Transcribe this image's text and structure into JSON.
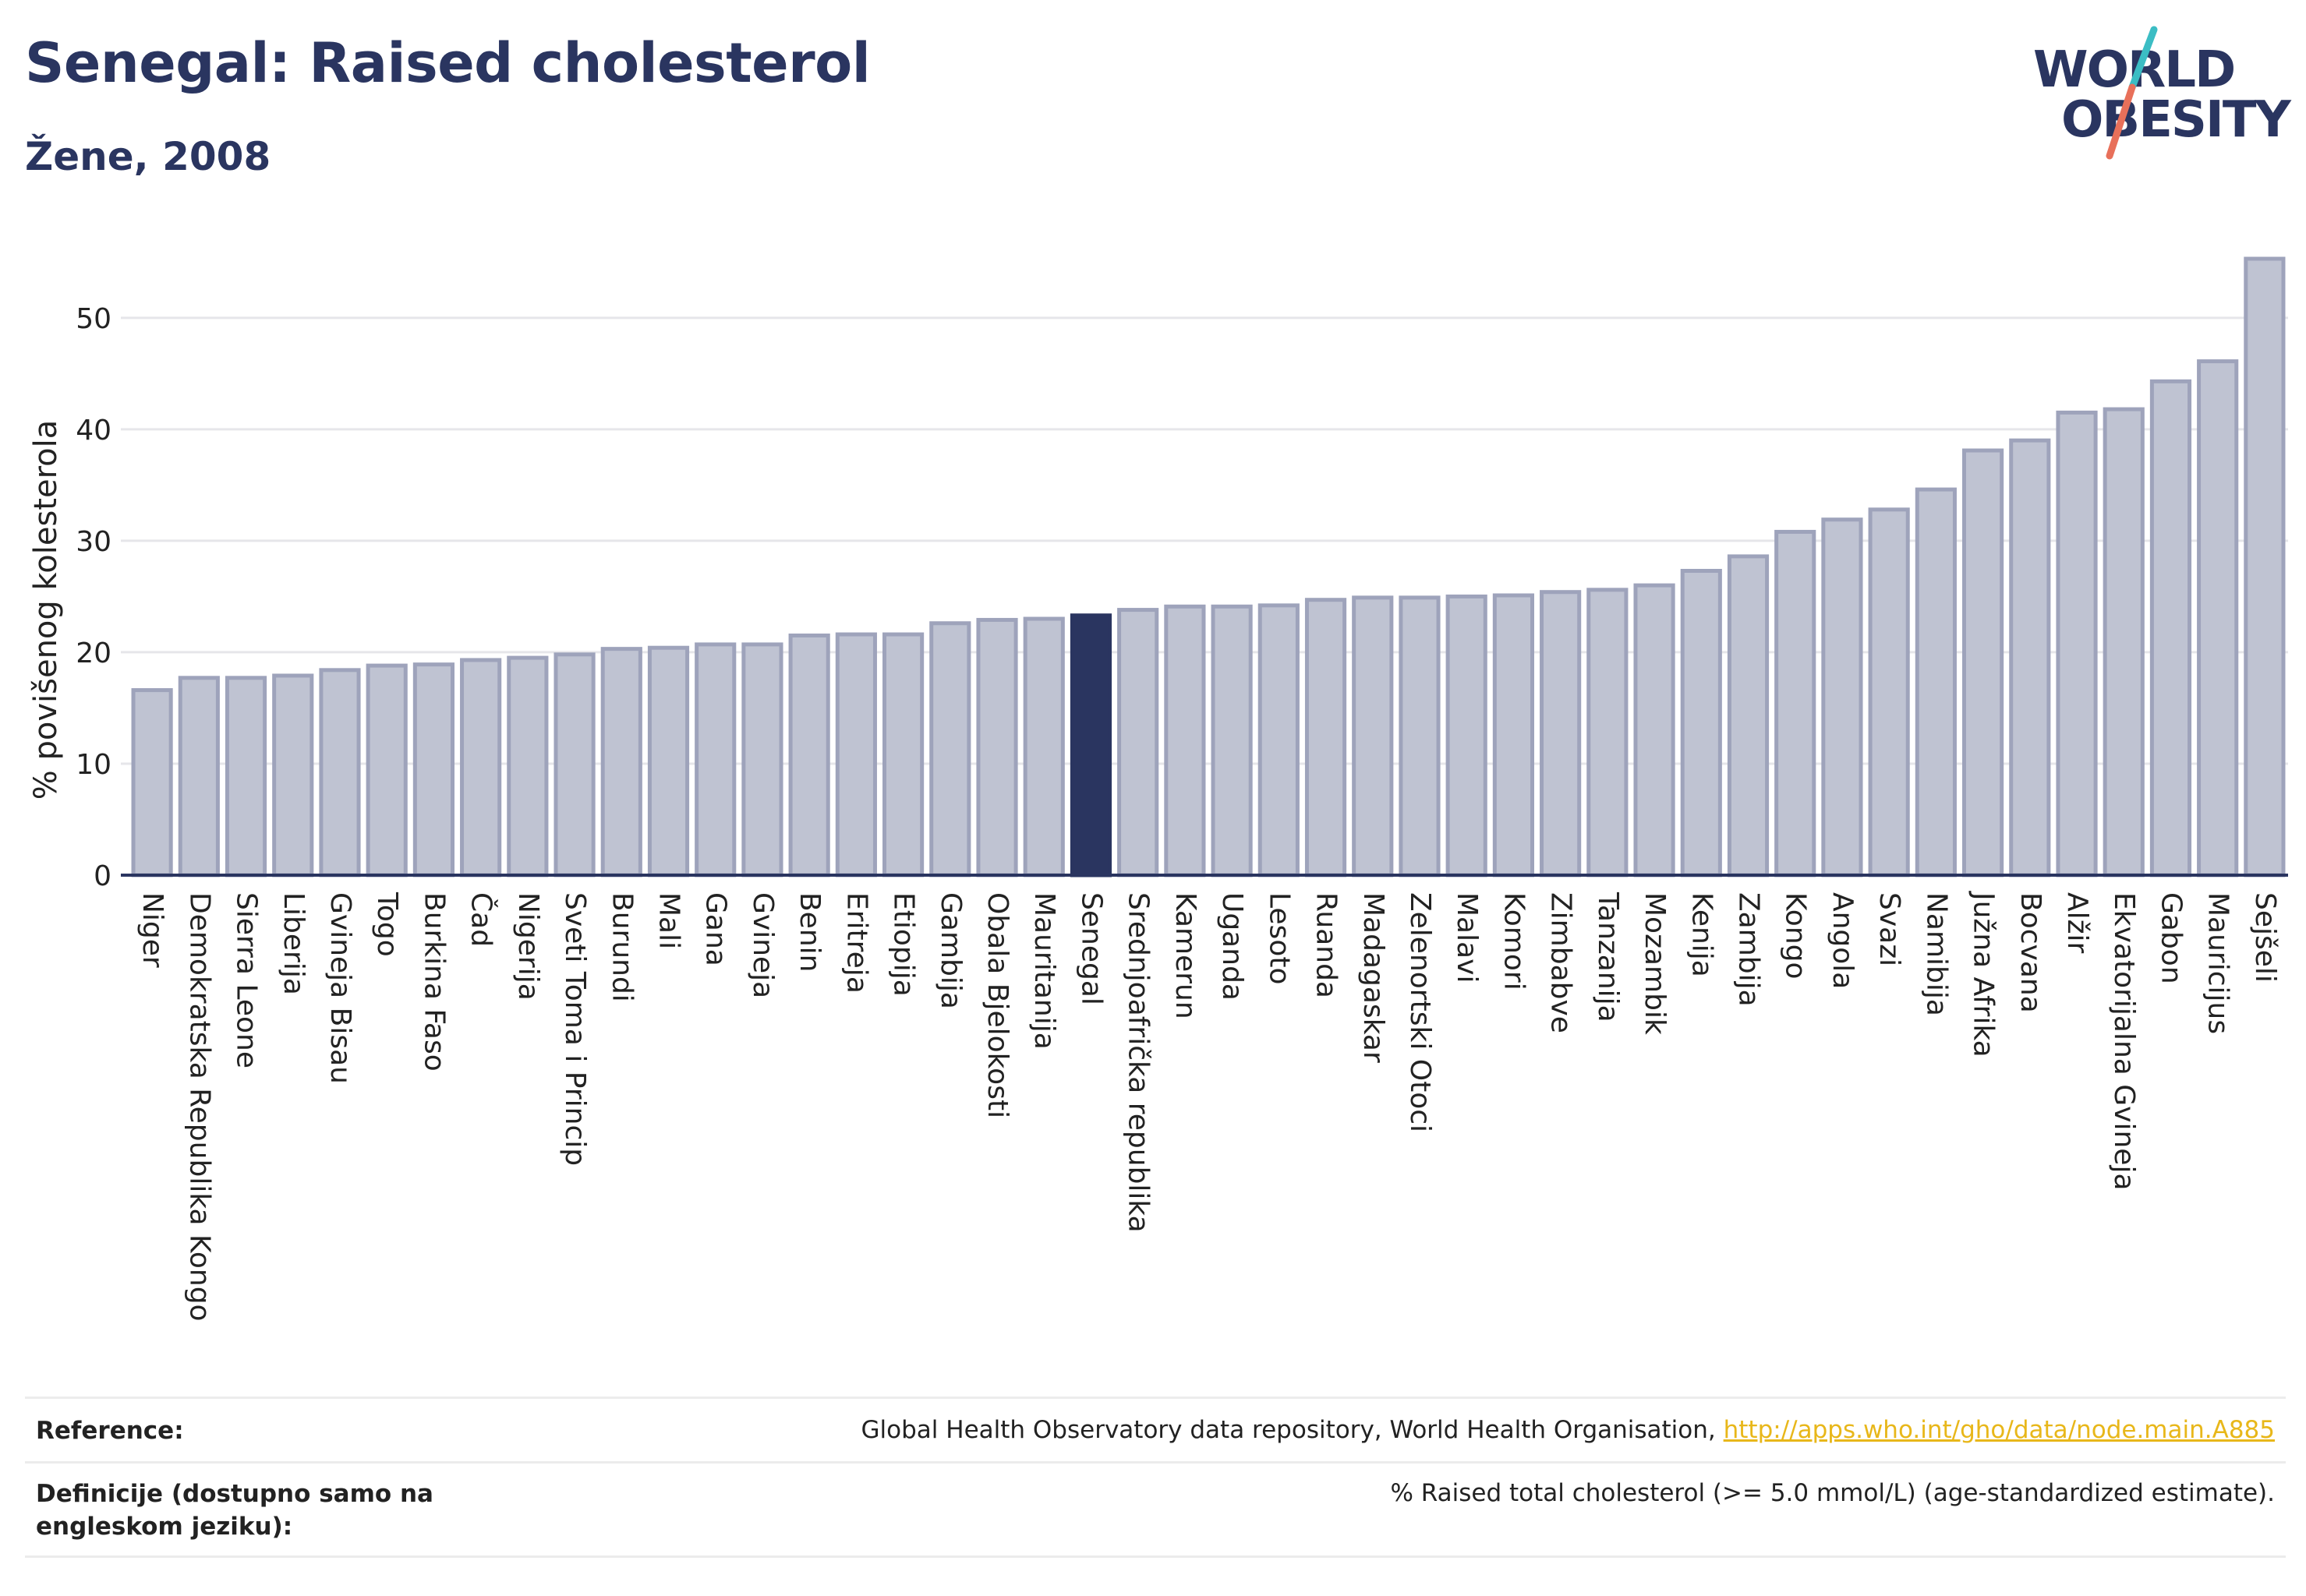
{
  "header": {
    "title": "Senegal: Raised cholesterol",
    "subtitle": "Žene, 2008"
  },
  "logo": {
    "line1": "WORLD",
    "line2": "OBESITY",
    "colors": {
      "text": "#2a3560",
      "slash_top": "#3bbdc4",
      "slash_bottom": "#e8705a"
    }
  },
  "chart_data": {
    "type": "bar",
    "title": "",
    "xlabel": "",
    "ylabel": "% povišenog kolesterola",
    "ylim": [
      0,
      56
    ],
    "yticks": [
      0,
      10,
      20,
      30,
      40,
      50
    ],
    "grid": true,
    "highlight": "Senegal",
    "colors": {
      "bar": "#bfc3d2",
      "bar_border": "#9ea3bb",
      "highlight": "#2a3560",
      "grid": "#e6e6ea",
      "axis": "#2a3560"
    },
    "categories": [
      "Niger",
      "Demokratska Republika Kongo",
      "Sierra Leone",
      "Liberija",
      "Gvineja Bisau",
      "Togo",
      "Burkina Faso",
      "Čad",
      "Nigerija",
      "Sveti Toma i Princip",
      "Burundi",
      "Mali",
      "Gana",
      "Gvineja",
      "Benin",
      "Eritreja",
      "Etiopija",
      "Gambija",
      "Obala Bjelokosti",
      "Mauritanija",
      "Senegal",
      "Srednjoafrička republika",
      "Kamerun",
      "Uganda",
      "Lesoto",
      "Ruanda",
      "Madagaskar",
      "Zelenortski Otoci",
      "Malavi",
      "Komori",
      "Zimbabve",
      "Tanzanija",
      "Mozambik",
      "Kenija",
      "Zambija",
      "Kongo",
      "Angola",
      "Svazi",
      "Namibija",
      "Južna Afrika",
      "Bocvana",
      "Alžir",
      "Ekvatorijalna Gvineja",
      "Gabon",
      "Mauricijus",
      "Sejšeli"
    ],
    "values": [
      16.6,
      17.7,
      17.7,
      17.9,
      18.4,
      18.8,
      18.9,
      19.3,
      19.5,
      19.8,
      20.3,
      20.4,
      20.7,
      20.7,
      21.5,
      21.6,
      21.6,
      22.6,
      22.9,
      23.0,
      23.3,
      23.8,
      24.1,
      24.1,
      24.2,
      24.7,
      24.9,
      24.9,
      25.0,
      25.1,
      25.4,
      25.6,
      26.0,
      27.3,
      28.6,
      30.8,
      31.9,
      32.8,
      34.6,
      38.1,
      39.0,
      41.5,
      41.8,
      44.3,
      46.1,
      55.3
    ]
  },
  "reference": {
    "label": "Reference:",
    "text": "Global Health Observatory data repository, World Health Organisation,",
    "link": "http://apps.who.int/gho/data/node.main.A885"
  },
  "definition": {
    "label": "Definicije (dostupno samo na engleskom jeziku):",
    "text": "% Raised total cholesterol (>= 5.0 mmol/L) (age-standardized estimate)."
  }
}
